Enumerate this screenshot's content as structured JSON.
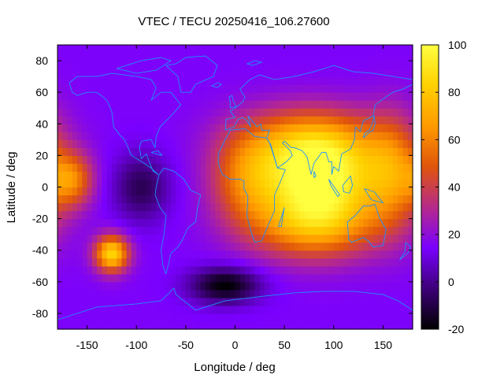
{
  "chart_data": {
    "type": "heatmap",
    "title": "VTEC / TECU 20250416_106.27600",
    "xlabel": "Longitude / deg",
    "ylabel": "Latitude / deg",
    "xlim": [
      -180,
      180
    ],
    "ylim": [
      -90,
      90
    ],
    "x_ticks": [
      -150,
      -100,
      -50,
      0,
      50,
      100,
      150
    ],
    "y_ticks": [
      -80,
      -60,
      -40,
      -20,
      0,
      20,
      40,
      60,
      80
    ],
    "colorbar": {
      "range": [
        -20,
        100
      ],
      "ticks": [
        -20,
        0,
        20,
        40,
        60,
        80,
        100
      ],
      "colormap": [
        "#000000",
        "#3d0078",
        "#7a00ff",
        "#b62a8a",
        "#e0550c",
        "#ff9a00",
        "#ffd000",
        "#ffff40"
      ]
    },
    "background_level": 15,
    "features": [
      {
        "name": "main equatorial anomaly",
        "lon": 85,
        "lat": 5,
        "sigma_lon": 45,
        "sigma_lat": 20,
        "peak": 95
      },
      {
        "name": "southern crest",
        "lon": 80,
        "lat": -25,
        "sigma_lon": 45,
        "sigma_lat": 15,
        "peak": 60
      },
      {
        "name": "northern extension",
        "lon": 75,
        "lat": 30,
        "sigma_lon": 50,
        "sigma_lat": 15,
        "peak": 55
      },
      {
        "name": "western bulge",
        "lon": 10,
        "lat": 5,
        "sigma_lon": 25,
        "sigma_lat": 20,
        "peak": 45
      },
      {
        "name": "eastern bulge",
        "lon": 160,
        "lat": 10,
        "sigma_lon": 20,
        "sigma_lat": 25,
        "peak": 50
      },
      {
        "name": "pacific equatorial band",
        "lon": -165,
        "lat": 5,
        "sigma_lon": 15,
        "sigma_lat": 12,
        "peak": 55
      },
      {
        "name": "south pacific hotspot",
        "lon": -125,
        "lat": -42,
        "sigma_lon": 12,
        "sigma_lat": 8,
        "peak": 85
      },
      {
        "name": "south atlantic depletion",
        "lon": -10,
        "lat": -62,
        "sigma_lon": 25,
        "sigma_lat": 8,
        "peak": -20
      },
      {
        "name": "southern polar band",
        "lon": -80,
        "lat": -78,
        "sigma_lon": 70,
        "sigma_lat": 5,
        "peak": 15
      },
      {
        "name": "pacific depletion",
        "lon": -95,
        "lat": 0,
        "sigma_lon": 20,
        "sigma_lat": 15,
        "peak": -8
      }
    ],
    "coastlines": [
      {
        "name": "north america",
        "points": [
          [
            -168,
            66
          ],
          [
            -160,
            70
          ],
          [
            -140,
            70
          ],
          [
            -125,
            72
          ],
          [
            -100,
            70
          ],
          [
            -85,
            68
          ],
          [
            -80,
            63
          ],
          [
            -85,
            55
          ],
          [
            -75,
            60
          ],
          [
            -65,
            60
          ],
          [
            -55,
            52
          ],
          [
            -65,
            45
          ],
          [
            -70,
            42
          ],
          [
            -76,
            38
          ],
          [
            -80,
            32
          ],
          [
            -81,
            25
          ],
          [
            -85,
            30
          ],
          [
            -95,
            29
          ],
          [
            -97,
            25
          ],
          [
            -95,
            18
          ],
          [
            -90,
            21
          ],
          [
            -87,
            16
          ],
          [
            -83,
            10
          ],
          [
            -78,
            8
          ],
          [
            -85,
            12
          ],
          [
            -92,
            15
          ],
          [
            -105,
            20
          ],
          [
            -112,
            30
          ],
          [
            -117,
            33
          ],
          [
            -123,
            38
          ],
          [
            -125,
            48
          ],
          [
            -130,
            55
          ],
          [
            -140,
            60
          ],
          [
            -150,
            60
          ],
          [
            -160,
            58
          ],
          [
            -165,
            60
          ],
          [
            -168,
            66
          ]
        ]
      },
      {
        "name": "greenland",
        "points": [
          [
            -55,
            60
          ],
          [
            -45,
            60
          ],
          [
            -40,
            65
          ],
          [
            -22,
            70
          ],
          [
            -18,
            77
          ],
          [
            -30,
            83
          ],
          [
            -50,
            82
          ],
          [
            -60,
            78
          ],
          [
            -70,
            77
          ],
          [
            -58,
            70
          ],
          [
            -55,
            60
          ]
        ]
      },
      {
        "name": "south america",
        "points": [
          [
            -77,
            8
          ],
          [
            -72,
            12
          ],
          [
            -62,
            10
          ],
          [
            -52,
            5
          ],
          [
            -45,
            -2
          ],
          [
            -35,
            -5
          ],
          [
            -38,
            -13
          ],
          [
            -40,
            -22
          ],
          [
            -48,
            -26
          ],
          [
            -53,
            -33
          ],
          [
            -58,
            -38
          ],
          [
            -65,
            -42
          ],
          [
            -68,
            -50
          ],
          [
            -70,
            -55
          ],
          [
            -73,
            -50
          ],
          [
            -75,
            -40
          ],
          [
            -72,
            -30
          ],
          [
            -70,
            -18
          ],
          [
            -76,
            -13
          ],
          [
            -81,
            -5
          ],
          [
            -80,
            0
          ],
          [
            -77,
            8
          ]
        ]
      },
      {
        "name": "africa",
        "points": [
          [
            -17,
            21
          ],
          [
            -10,
            30
          ],
          [
            -5,
            36
          ],
          [
            10,
            37
          ],
          [
            20,
            32
          ],
          [
            32,
            31
          ],
          [
            35,
            28
          ],
          [
            43,
            12
          ],
          [
            51,
            11
          ],
          [
            45,
            2
          ],
          [
            40,
            -5
          ],
          [
            40,
            -15
          ],
          [
            33,
            -25
          ],
          [
            27,
            -34
          ],
          [
            20,
            -35
          ],
          [
            17,
            -30
          ],
          [
            12,
            -18
          ],
          [
            13,
            -6
          ],
          [
            9,
            -1
          ],
          [
            9,
            4
          ],
          [
            5,
            5
          ],
          [
            -5,
            5
          ],
          [
            -13,
            8
          ],
          [
            -17,
            15
          ],
          [
            -17,
            21
          ]
        ]
      },
      {
        "name": "eurasia",
        "points": [
          [
            -10,
            36
          ],
          [
            -9,
            43
          ],
          [
            0,
            44
          ],
          [
            -5,
            48
          ],
          [
            2,
            51
          ],
          [
            8,
            54
          ],
          [
            10,
            57
          ],
          [
            5,
            62
          ],
          [
            15,
            68
          ],
          [
            25,
            71
          ],
          [
            40,
            68
          ],
          [
            60,
            70
          ],
          [
            80,
            73
          ],
          [
            100,
            77
          ],
          [
            120,
            73
          ],
          [
            140,
            72
          ],
          [
            160,
            70
          ],
          [
            180,
            68
          ],
          [
            180,
            65
          ],
          [
            170,
            62
          ],
          [
            160,
            60
          ],
          [
            155,
            58
          ],
          [
            142,
            52
          ],
          [
            140,
            45
          ],
          [
            130,
            42
          ],
          [
            127,
            35
          ],
          [
            122,
            38
          ],
          [
            121,
            30
          ],
          [
            117,
            24
          ],
          [
            108,
            21
          ],
          [
            105,
            10
          ],
          [
            100,
            13
          ],
          [
            98,
            8
          ],
          [
            98,
            16
          ],
          [
            95,
            16
          ],
          [
            92,
            22
          ],
          [
            88,
            22
          ],
          [
            80,
            15
          ],
          [
            77,
            8
          ],
          [
            73,
            19
          ],
          [
            68,
            23
          ],
          [
            60,
            25
          ],
          [
            57,
            25
          ],
          [
            50,
            29
          ],
          [
            48,
            28
          ],
          [
            56,
            23
          ],
          [
            58,
            20
          ],
          [
            52,
            16
          ],
          [
            43,
            12
          ],
          [
            36,
            27
          ],
          [
            32,
            31
          ],
          [
            35,
            36
          ],
          [
            27,
            36
          ],
          [
            26,
            40
          ],
          [
            22,
            38
          ],
          [
            20,
            40
          ],
          [
            13,
            45
          ],
          [
            16,
            38
          ],
          [
            12,
            42
          ],
          [
            8,
            44
          ],
          [
            3,
            43
          ],
          [
            -1,
            38
          ],
          [
            -10,
            36
          ]
        ]
      },
      {
        "name": "australia",
        "points": [
          [
            114,
            -22
          ],
          [
            122,
            -18
          ],
          [
            130,
            -12
          ],
          [
            136,
            -12
          ],
          [
            142,
            -11
          ],
          [
            146,
            -19
          ],
          [
            153,
            -27
          ],
          [
            150,
            -37
          ],
          [
            140,
            -38
          ],
          [
            135,
            -34
          ],
          [
            130,
            -32
          ],
          [
            118,
            -35
          ],
          [
            115,
            -33
          ],
          [
            114,
            -22
          ]
        ]
      },
      {
        "name": "antarctica",
        "points": [
          [
            -180,
            -84
          ],
          [
            -140,
            -76
          ],
          [
            -100,
            -74
          ],
          [
            -75,
            -72
          ],
          [
            -62,
            -64
          ],
          [
            -60,
            -68
          ],
          [
            -40,
            -78
          ],
          [
            -10,
            -72
          ],
          [
            30,
            -69
          ],
          [
            60,
            -67
          ],
          [
            90,
            -66
          ],
          [
            120,
            -66
          ],
          [
            150,
            -68
          ],
          [
            165,
            -72
          ],
          [
            180,
            -78
          ]
        ]
      },
      {
        "name": "british isles",
        "points": [
          [
            -5,
            50
          ],
          [
            1,
            51
          ],
          [
            -2,
            55
          ],
          [
            -3,
            58
          ],
          [
            -6,
            57
          ],
          [
            -5,
            54
          ],
          [
            -5,
            50
          ]
        ]
      },
      {
        "name": "japan",
        "points": [
          [
            130,
            31
          ],
          [
            135,
            34
          ],
          [
            140,
            36
          ],
          [
            142,
            40
          ],
          [
            141,
            45
          ],
          [
            139,
            40
          ],
          [
            136,
            36
          ],
          [
            131,
            34
          ],
          [
            130,
            31
          ]
        ]
      },
      {
        "name": "madagascar",
        "points": [
          [
            44,
            -25
          ],
          [
            49,
            -15
          ],
          [
            50,
            -13
          ],
          [
            48,
            -20
          ],
          [
            47,
            -25
          ],
          [
            44,
            -25
          ]
        ]
      },
      {
        "name": "borneo",
        "points": [
          [
            109,
            1
          ],
          [
            117,
            7
          ],
          [
            119,
            1
          ],
          [
            116,
            -4
          ],
          [
            110,
            -3
          ],
          [
            109,
            1
          ]
        ]
      },
      {
        "name": "sumatra",
        "points": [
          [
            95,
            5
          ],
          [
            106,
            -5
          ],
          [
            104,
            -6
          ],
          [
            97,
            1
          ],
          [
            95,
            5
          ]
        ]
      },
      {
        "name": "new guinea",
        "points": [
          [
            131,
            -1
          ],
          [
            141,
            -3
          ],
          [
            150,
            -10
          ],
          [
            143,
            -9
          ],
          [
            138,
            -8
          ],
          [
            131,
            -1
          ]
        ]
      },
      {
        "name": "new zealand",
        "points": [
          [
            173,
            -35
          ],
          [
            178,
            -38
          ],
          [
            175,
            -42
          ],
          [
            171,
            -44
          ],
          [
            167,
            -46
          ],
          [
            172,
            -41
          ],
          [
            173,
            -35
          ]
        ]
      },
      {
        "name": "iceland",
        "points": [
          [
            -24,
            64
          ],
          [
            -18,
            66
          ],
          [
            -14,
            65
          ],
          [
            -18,
            63
          ],
          [
            -24,
            64
          ]
        ]
      },
      {
        "name": "canadian arctic islands",
        "points": [
          [
            -120,
            75
          ],
          [
            -95,
            80
          ],
          [
            -75,
            82
          ],
          [
            -65,
            80
          ],
          [
            -80,
            74
          ],
          [
            -100,
            72
          ],
          [
            -120,
            75
          ]
        ]
      },
      {
        "name": "svalbard",
        "points": [
          [
            12,
            78
          ],
          [
            20,
            80
          ],
          [
            27,
            79
          ],
          [
            18,
            77
          ],
          [
            12,
            78
          ]
        ]
      },
      {
        "name": "sri lanka",
        "points": [
          [
            80,
            10
          ],
          [
            82,
            7
          ],
          [
            80,
            6
          ],
          [
            80,
            10
          ]
        ]
      },
      {
        "name": "cuba",
        "points": [
          [
            -85,
            22
          ],
          [
            -78,
            23
          ],
          [
            -74,
            20
          ],
          [
            -80,
            21
          ],
          [
            -85,
            22
          ]
        ]
      }
    ]
  }
}
